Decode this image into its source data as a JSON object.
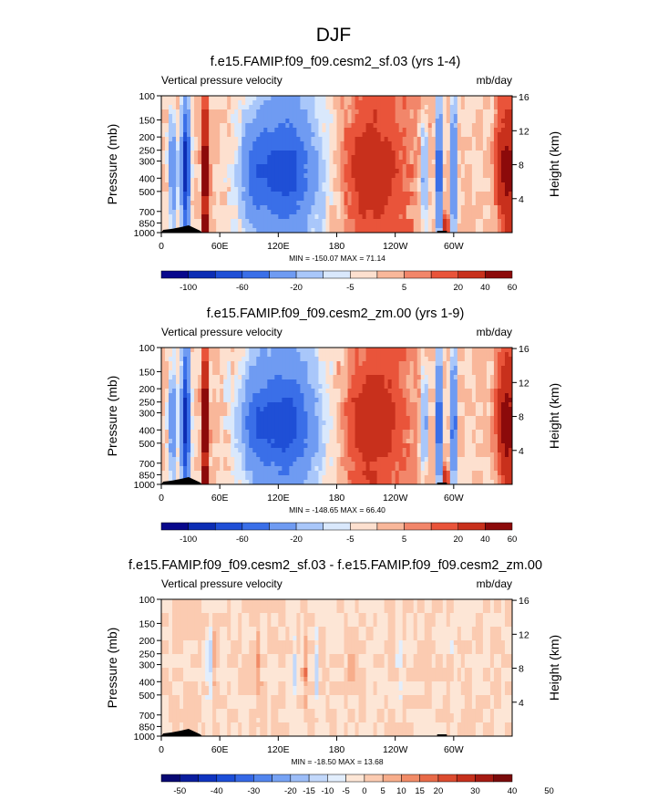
{
  "figure": {
    "title": "DJF"
  },
  "colors": {
    "ramp12": [
      "#08088c",
      "#0c2db4",
      "#1f4fd6",
      "#3a6fe8",
      "#6f9bf2",
      "#a9c7fa",
      "#d9e8fc",
      "#fde0cf",
      "#f9b79a",
      "#f2866a",
      "#e9543a",
      "#c8301c",
      "#8c0a0a"
    ],
    "ramp18": [
      "#080873",
      "#0a1d9e",
      "#0f34c0",
      "#1c4ed8",
      "#3568e6",
      "#5285ee",
      "#76a2f4",
      "#9cbdf8",
      "#c2d8fb",
      "#e2eefd",
      "#fde6d6",
      "#fbcbb1",
      "#f7ad8b",
      "#f18b67",
      "#e86a48",
      "#dc4b2f",
      "#c6301c",
      "#a51a12",
      "#7a0b0b"
    ],
    "terrain": "#000000"
  },
  "chart_data": [
    {
      "type": "heatmap",
      "title": "f.e15.FAMIP.f09_f09.cesm2_sf.03 (yrs 1-4)",
      "left_label": "Vertical pressure velocity",
      "right_label": "mb/day",
      "ylabel": "Pressure (mb)",
      "ylabel_right": "Height (km)",
      "x_ticks": [
        "0",
        "60E",
        "120E",
        "180",
        "120W",
        "60W"
      ],
      "x_tick_lon": [
        0,
        60,
        120,
        180,
        240,
        300
      ],
      "xlim": [
        0,
        360
      ],
      "y_ticks": [
        "100",
        "150",
        "200",
        "250",
        "300",
        "400",
        "500",
        "700",
        "850",
        "1000"
      ],
      "y_tick_p": [
        100,
        150,
        200,
        250,
        300,
        400,
        500,
        700,
        850,
        1000
      ],
      "ylim": [
        100,
        1000
      ],
      "y_log": true,
      "height_ticks": [
        "16",
        "12",
        "8",
        "4"
      ],
      "height_tick_km": [
        16,
        12,
        8,
        4
      ],
      "stats": "MIN = -150.07  MAX =  71.14",
      "min": -150.07,
      "max": 71.14,
      "levels": [
        -100,
        -80,
        -60,
        -40,
        -20,
        -10,
        -5,
        0,
        5,
        10,
        20,
        40,
        60
      ],
      "colorbar_labels": [
        "-100",
        "-60",
        "-20",
        "-5",
        "5",
        "20",
        "40",
        "60"
      ],
      "colorbar_label_levels": [
        -100,
        -60,
        -20,
        -5,
        5,
        20,
        40,
        60
      ],
      "colorbar_ramp": "ramp12",
      "field": "mean"
    },
    {
      "type": "heatmap",
      "title": "f.e15.FAMIP.f09_f09.cesm2_zm.00 (yrs 1-9)",
      "left_label": "Vertical pressure velocity",
      "right_label": "mb/day",
      "ylabel": "Pressure (mb)",
      "ylabel_right": "Height (km)",
      "x_ticks": [
        "0",
        "60E",
        "120E",
        "180",
        "120W",
        "60W"
      ],
      "x_tick_lon": [
        0,
        60,
        120,
        180,
        240,
        300
      ],
      "xlim": [
        0,
        360
      ],
      "y_ticks": [
        "100",
        "150",
        "200",
        "250",
        "300",
        "400",
        "500",
        "700",
        "850",
        "1000"
      ],
      "y_tick_p": [
        100,
        150,
        200,
        250,
        300,
        400,
        500,
        700,
        850,
        1000
      ],
      "ylim": [
        100,
        1000
      ],
      "y_log": true,
      "height_ticks": [
        "16",
        "12",
        "8",
        "4"
      ],
      "height_tick_km": [
        16,
        12,
        8,
        4
      ],
      "stats": "MIN = -148.65  MAX =  66.40",
      "min": -148.65,
      "max": 66.4,
      "levels": [
        -100,
        -80,
        -60,
        -40,
        -20,
        -10,
        -5,
        0,
        5,
        10,
        20,
        40,
        60
      ],
      "colorbar_labels": [
        "-100",
        "-60",
        "-20",
        "-5",
        "5",
        "20",
        "40",
        "60"
      ],
      "colorbar_label_levels": [
        -100,
        -60,
        -20,
        -5,
        5,
        20,
        40,
        60
      ],
      "colorbar_ramp": "ramp12",
      "field": "mean"
    },
    {
      "type": "heatmap",
      "title": "f.e15.FAMIP.f09_f09.cesm2_sf.03 - f.e15.FAMIP.f09_f09.cesm2_zm.00",
      "left_label": "Vertical pressure velocity",
      "right_label": "mb/day",
      "ylabel": "Pressure (mb)",
      "ylabel_right": "Height (km)",
      "x_ticks": [
        "0",
        "60E",
        "120E",
        "180",
        "120W",
        "60W"
      ],
      "x_tick_lon": [
        0,
        60,
        120,
        180,
        240,
        300
      ],
      "xlim": [
        0,
        360
      ],
      "y_ticks": [
        "100",
        "150",
        "200",
        "250",
        "300",
        "400",
        "500",
        "700",
        "850",
        "1000"
      ],
      "y_tick_p": [
        100,
        150,
        200,
        250,
        300,
        400,
        500,
        700,
        850,
        1000
      ],
      "ylim": [
        100,
        1000
      ],
      "y_log": true,
      "height_ticks": [
        "16",
        "12",
        "8",
        "4"
      ],
      "height_tick_km": [
        16,
        12,
        8,
        4
      ],
      "stats": "MIN = -18.50  MAX =  13.68",
      "min": -18.5,
      "max": 13.68,
      "levels": [
        -50,
        -45,
        -40,
        -35,
        -30,
        -25,
        -20,
        -15,
        -10,
        -5,
        0,
        5,
        10,
        15,
        20,
        25,
        30,
        35,
        40,
        45,
        50
      ],
      "colorbar_labels": [
        "-50",
        "-40",
        "-30",
        "-20",
        "-15",
        "-10",
        "-5",
        "0",
        "5",
        "10",
        "15",
        "20",
        "30",
        "40",
        "50"
      ],
      "colorbar_label_levels": [
        -50,
        -40,
        -30,
        -20,
        -15,
        -10,
        -5,
        0,
        5,
        10,
        15,
        20,
        30,
        40,
        50
      ],
      "colorbar_ramp": "ramp18",
      "field": "diff"
    }
  ]
}
